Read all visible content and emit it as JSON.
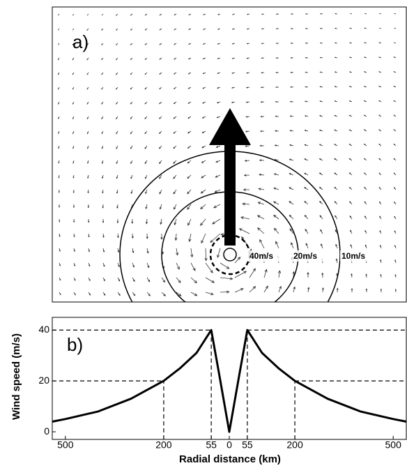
{
  "chart_data": [
    {
      "type": "vector",
      "title": "a)",
      "contours": [
        "40m/s",
        "20m/s",
        "10m/s"
      ]
    },
    {
      "type": "line",
      "title": "b)",
      "y_label": "Wind speed (m/s)",
      "x_label": "Radial distance (km)",
      "x": [
        -540,
        -500,
        -400,
        -300,
        -200,
        -150,
        -100,
        -55,
        -30,
        0,
        30,
        55,
        100,
        150,
        200,
        300,
        400,
        500,
        540
      ],
      "series": [
        {
          "name": "Wind speed",
          "color": "#000000",
          "values": [
            4,
            5,
            8,
            13,
            20,
            25,
            31,
            40,
            22,
            0,
            22,
            40,
            31,
            25,
            20,
            13,
            8,
            5,
            4
          ]
        }
      ],
      "xlim": [
        -540,
        540
      ],
      "ylim": [
        -3,
        45
      ],
      "xticks": [
        {
          "value": -500,
          "label": "500"
        },
        {
          "value": -200,
          "label": "200"
        },
        {
          "value": -55,
          "label": "55"
        },
        0,
        55,
        200,
        500
      ],
      "yticks": [
        0,
        20,
        40
      ],
      "guides": {
        "x": [
          -200,
          -55,
          55,
          200
        ],
        "y": [
          20,
          40,
          40,
          20
        ]
      }
    }
  ]
}
